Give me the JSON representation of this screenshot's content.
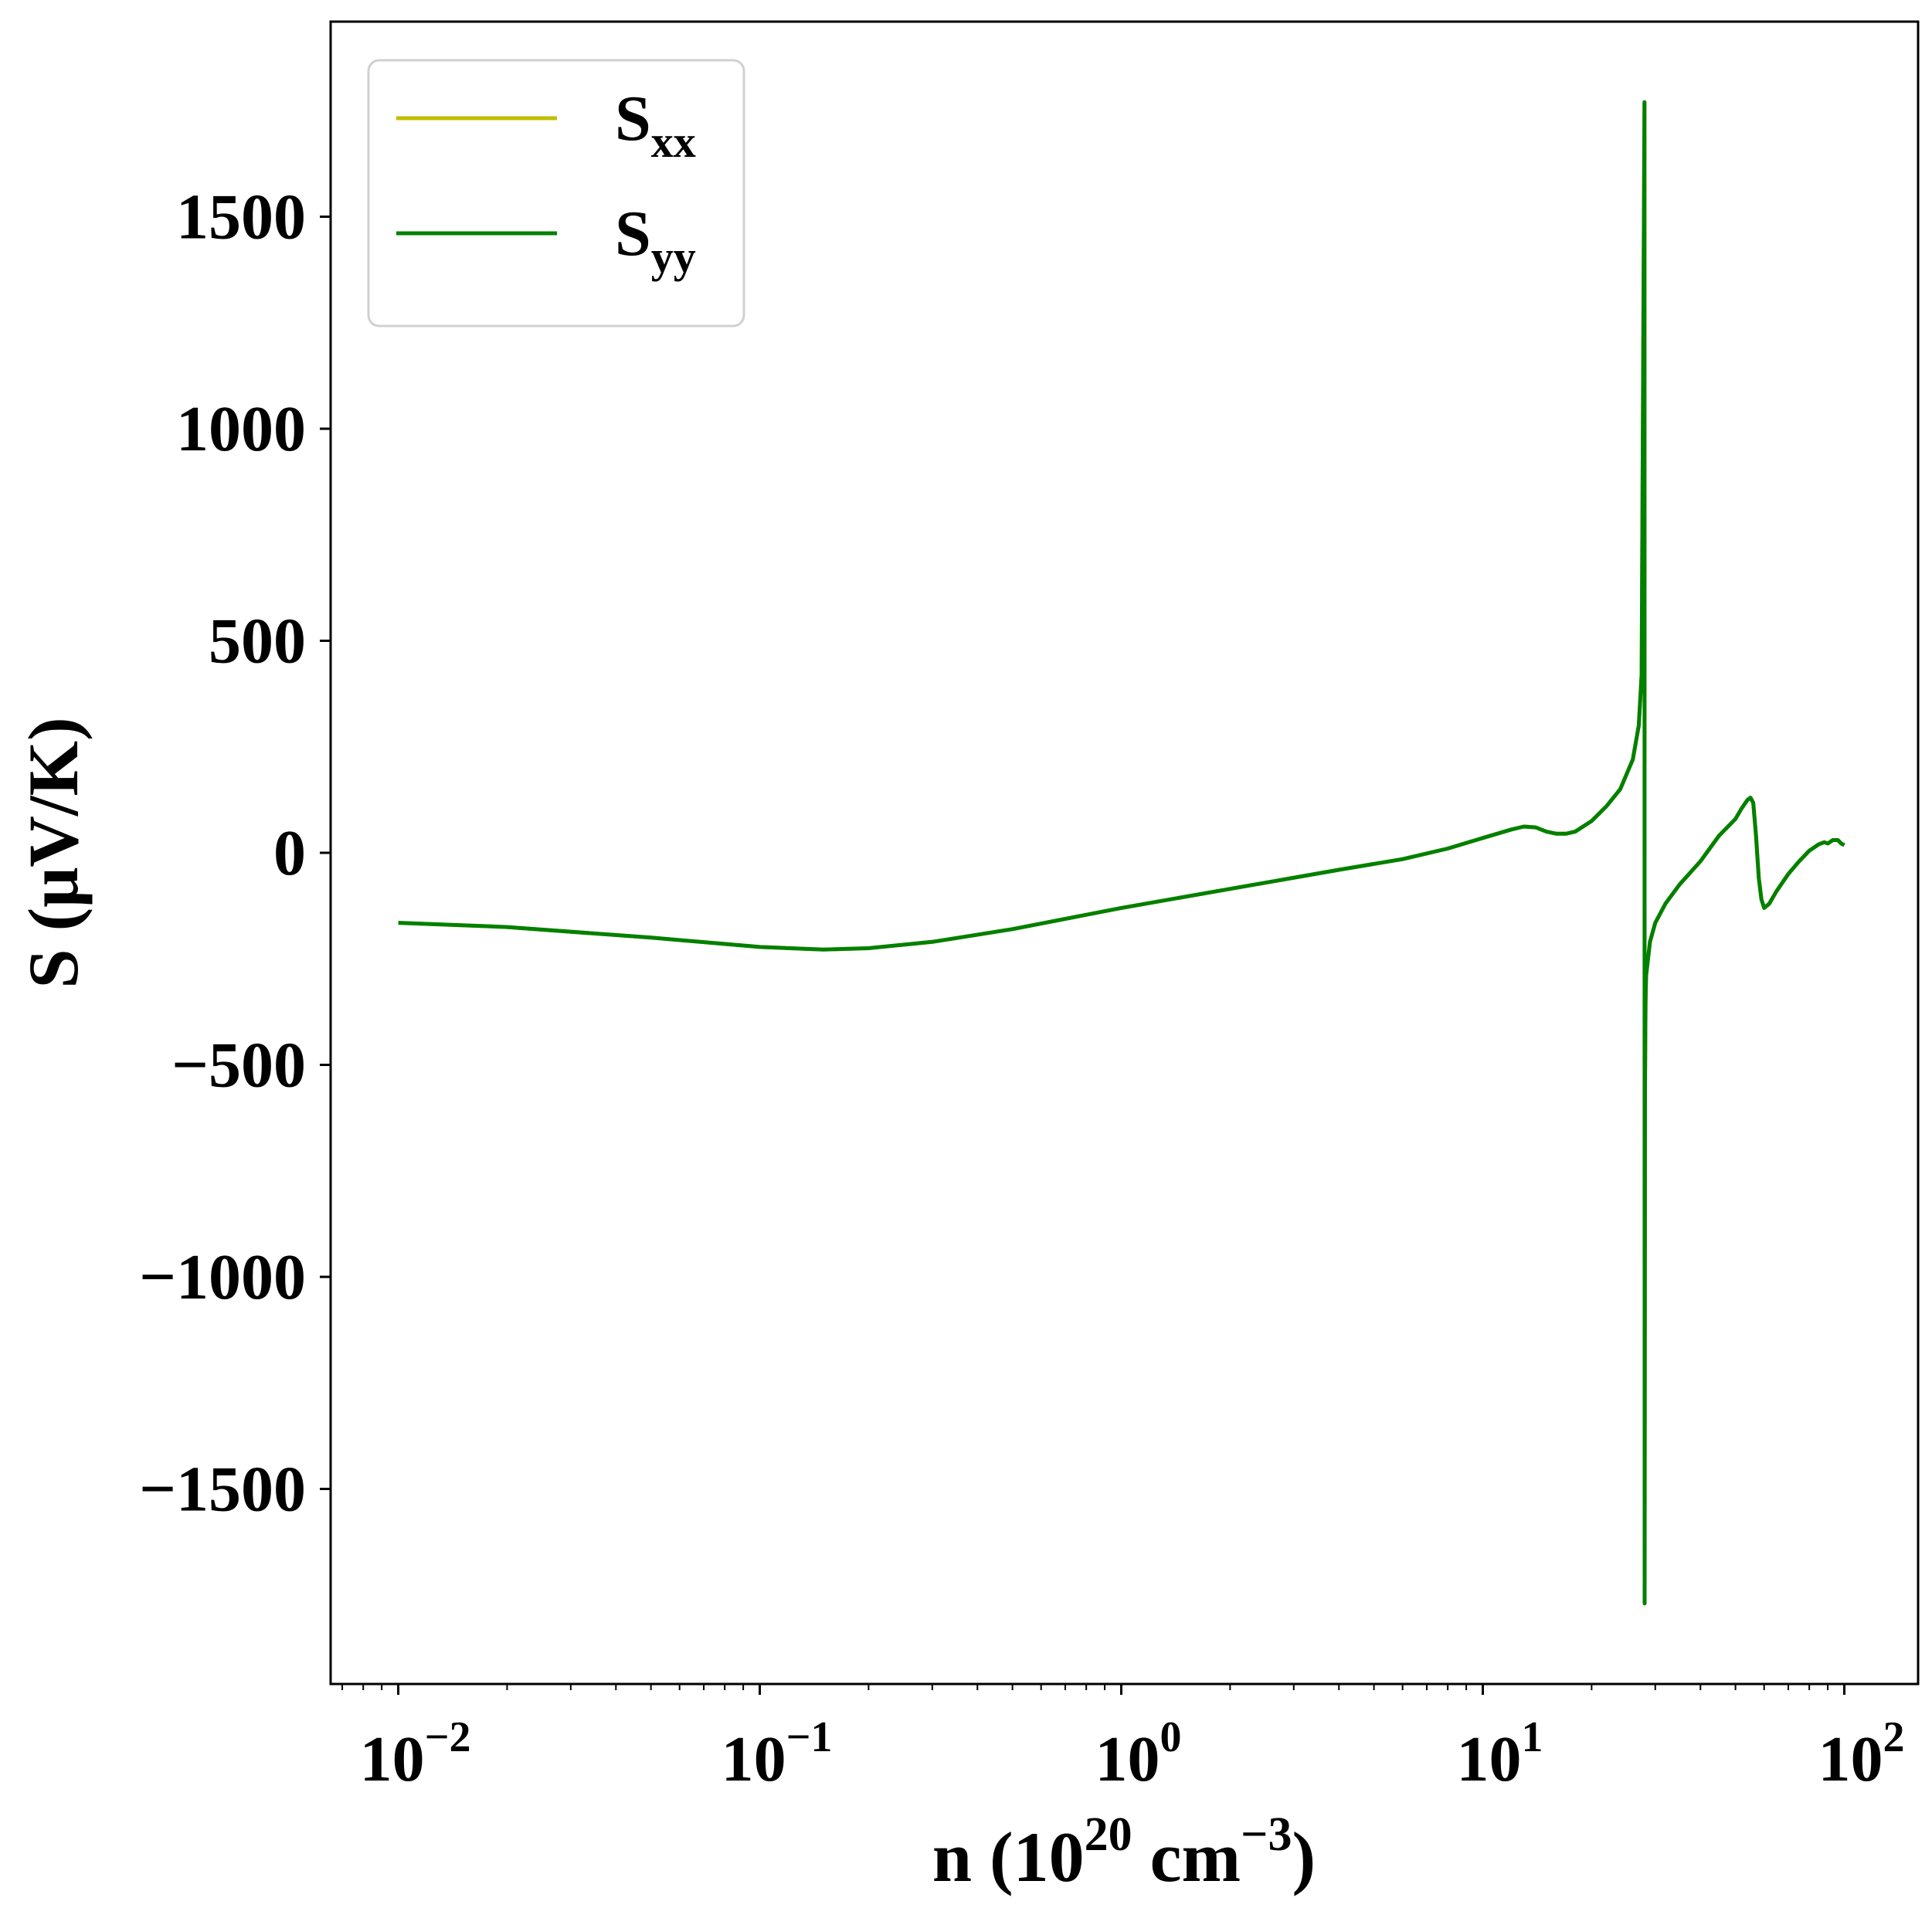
{
  "chart_data": {
    "type": "line",
    "title": "",
    "x_scale": "log",
    "xlim": [
      0.0065,
      160
    ],
    "ylim": [
      -1960,
      1960
    ],
    "grid": false,
    "legend_position": "top-left",
    "xlabel": {
      "base": "n (10",
      "sup1": "20",
      "mid": " cm",
      "sup2": "−3",
      "end": ")"
    },
    "ylabel": "S (μV/K)",
    "x_ticks": [
      {
        "value": 0.01,
        "base": "10",
        "exp": "−2"
      },
      {
        "value": 0.1,
        "base": "10",
        "exp": "−1"
      },
      {
        "value": 1,
        "base": "10",
        "exp": "0"
      },
      {
        "value": 10,
        "base": "10",
        "exp": "1"
      },
      {
        "value": 100,
        "base": "10",
        "exp": "2"
      }
    ],
    "y_ticks": [
      {
        "value": -1500,
        "label": "−1500"
      },
      {
        "value": -1000,
        "label": "−1000"
      },
      {
        "value": -500,
        "label": "−500"
      },
      {
        "value": 0,
        "label": "0"
      },
      {
        "value": 500,
        "label": "500"
      },
      {
        "value": 1000,
        "label": "1000"
      },
      {
        "value": 1500,
        "label": "1500"
      }
    ],
    "series": [
      {
        "name": "S",
        "subscript": "xx",
        "color": "#bfbf00",
        "x": [
          0.01,
          0.02,
          0.05,
          0.1,
          0.15,
          0.2,
          0.3,
          0.5,
          1,
          2,
          4,
          6,
          8,
          10,
          12,
          13,
          14,
          15,
          16,
          17,
          18,
          20,
          22,
          24,
          26,
          27,
          27.5,
          28,
          28.02,
          28.04,
          28.1,
          28.2,
          28.3,
          29,
          30,
          32,
          35,
          40,
          45,
          50,
          52,
          54,
          55,
          56,
          57,
          58,
          59,
          60,
          62,
          65,
          70,
          75,
          80,
          85,
          88,
          90,
          93,
          96,
          98,
          100
        ],
        "y": [
          -165,
          -175,
          -200,
          -222,
          -228,
          -225,
          -210,
          -180,
          -130,
          -85,
          -40,
          -15,
          10,
          35,
          55,
          62,
          60,
          50,
          45,
          45,
          50,
          75,
          110,
          150,
          220,
          300,
          420,
          1770,
          500,
          -1770,
          -550,
          -350,
          -290,
          -210,
          -165,
          -120,
          -75,
          -20,
          40,
          80,
          105,
          125,
          130,
          118,
          40,
          -60,
          -110,
          -130,
          -120,
          -90,
          -50,
          -20,
          5,
          20,
          25,
          22,
          30,
          30,
          22,
          18
        ]
      },
      {
        "name": "S",
        "subscript": "yy",
        "color": "#008000",
        "x": [
          0.01,
          0.02,
          0.05,
          0.1,
          0.15,
          0.2,
          0.3,
          0.5,
          1,
          2,
          4,
          6,
          8,
          10,
          12,
          13,
          14,
          15,
          16,
          17,
          18,
          20,
          22,
          24,
          26,
          27,
          27.5,
          28,
          28.02,
          28.04,
          28.1,
          28.2,
          28.3,
          29,
          30,
          32,
          35,
          40,
          45,
          50,
          52,
          54,
          55,
          56,
          57,
          58,
          59,
          60,
          62,
          65,
          70,
          75,
          80,
          85,
          88,
          90,
          93,
          96,
          98,
          100
        ],
        "y": [
          -165,
          -175,
          -200,
          -222,
          -228,
          -225,
          -210,
          -180,
          -130,
          -85,
          -40,
          -15,
          10,
          35,
          55,
          62,
          60,
          50,
          45,
          45,
          50,
          75,
          110,
          150,
          220,
          300,
          420,
          1770,
          500,
          -1770,
          -550,
          -350,
          -290,
          -210,
          -165,
          -120,
          -75,
          -20,
          40,
          80,
          105,
          125,
          130,
          118,
          40,
          -60,
          -110,
          -130,
          -120,
          -90,
          -50,
          -20,
          5,
          20,
          25,
          22,
          30,
          30,
          22,
          18
        ]
      }
    ]
  }
}
